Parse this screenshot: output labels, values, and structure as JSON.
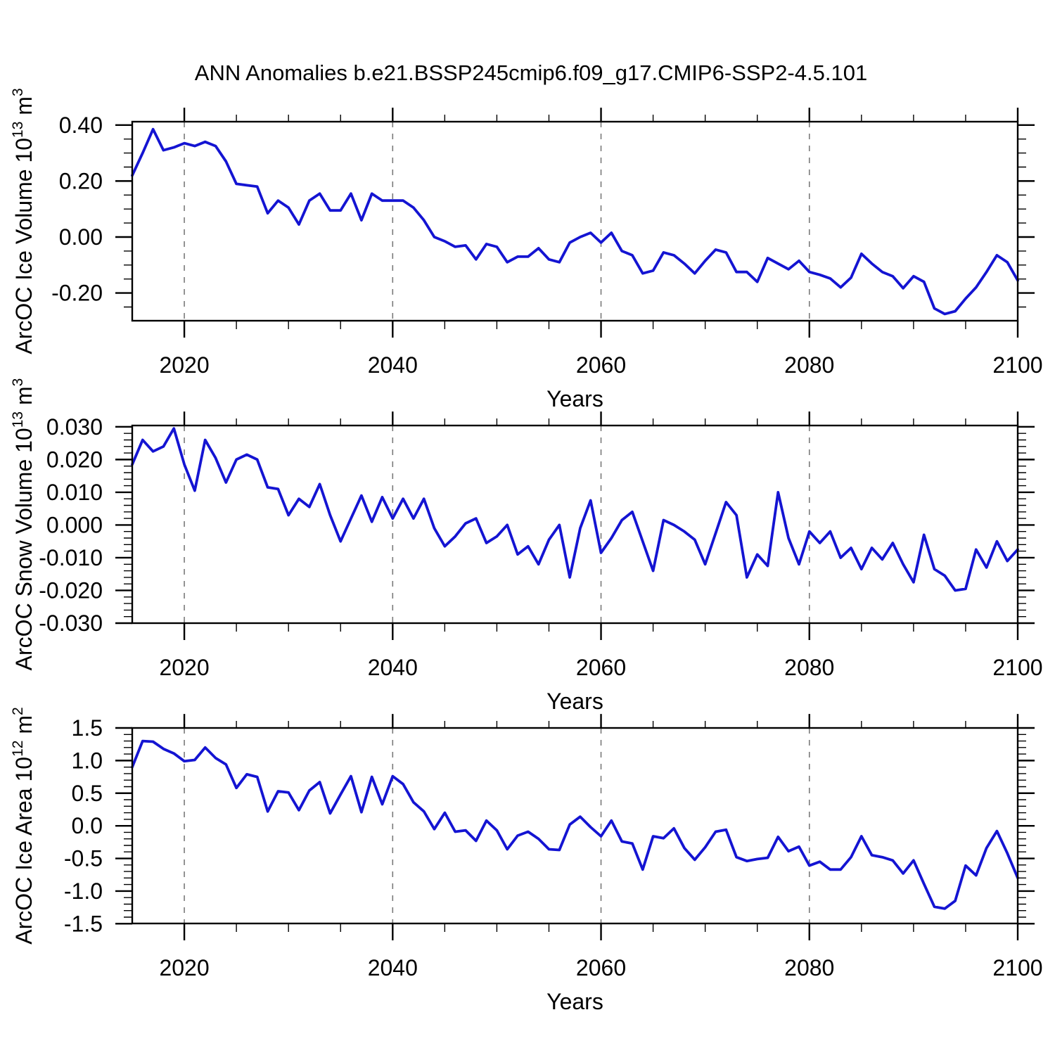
{
  "title": "ANN Anomalies b.e21.BSSP245cmip6.f09_g17.CMIP6-SSP2-4.5.101",
  "chart_data": {
    "type": "line",
    "title": "ANN Anomalies b.e21.BSSP245cmip6.f09_g17.CMIP6-SSP2-4.5.101",
    "x_label": "Years",
    "xlim": [
      2015,
      2100
    ],
    "x_ticks": [
      2020,
      2040,
      2060,
      2080,
      2100
    ],
    "x_tick_labels": [
      "2020",
      "2040",
      "2060",
      "2080",
      "2100"
    ],
    "x_minor_step": 5,
    "x_gridlines": [
      2020,
      2040,
      2060,
      2080
    ],
    "line_color": "#1414d2",
    "grid_color": "#7a7a7a",
    "x_years": [
      2015,
      2016,
      2017,
      2018,
      2019,
      2020,
      2021,
      2022,
      2023,
      2024,
      2025,
      2026,
      2027,
      2028,
      2029,
      2030,
      2031,
      2032,
      2033,
      2034,
      2035,
      2036,
      2037,
      2038,
      2039,
      2040,
      2041,
      2042,
      2043,
      2044,
      2045,
      2046,
      2047,
      2048,
      2049,
      2050,
      2051,
      2052,
      2053,
      2054,
      2055,
      2056,
      2057,
      2058,
      2059,
      2060,
      2061,
      2062,
      2063,
      2064,
      2065,
      2066,
      2067,
      2068,
      2069,
      2070,
      2071,
      2072,
      2073,
      2074,
      2075,
      2076,
      2077,
      2078,
      2079,
      2080,
      2081,
      2082,
      2083,
      2084,
      2085,
      2086,
      2087,
      2088,
      2089,
      2090,
      2091,
      2092,
      2093,
      2094,
      2095,
      2096,
      2097,
      2098,
      2099,
      2100
    ],
    "panels": [
      {
        "name": "ice-volume",
        "ylabel_parts": [
          {
            "t": "ArcOC Ice Volume 10"
          },
          {
            "t": "13",
            "sup": true
          },
          {
            "t": " m"
          },
          {
            "t": "3",
            "sup": true
          }
        ],
        "ylim": [
          -0.299,
          0.412
        ],
        "y_ticks": [
          0.4,
          0.2,
          0.0,
          -0.2
        ],
        "y_tick_labels": [
          "0.40",
          "0.20",
          "0.00",
          "-0.20"
        ],
        "y_minor_step": 0.05,
        "values": [
          0.22,
          0.3,
          0.385,
          0.31,
          0.32,
          0.335,
          0.325,
          0.34,
          0.325,
          0.27,
          0.19,
          0.185,
          0.18,
          0.085,
          0.13,
          0.105,
          0.045,
          0.13,
          0.155,
          0.095,
          0.095,
          0.155,
          0.06,
          0.155,
          0.13,
          0.13,
          0.13,
          0.105,
          0.06,
          0.0,
          -0.015,
          -0.035,
          -0.03,
          -0.08,
          -0.025,
          -0.035,
          -0.09,
          -0.07,
          -0.07,
          -0.04,
          -0.08,
          -0.09,
          -0.02,
          0.0,
          0.015,
          -0.02,
          0.015,
          -0.05,
          -0.065,
          -0.13,
          -0.12,
          -0.055,
          -0.065,
          -0.095,
          -0.13,
          -0.085,
          -0.045,
          -0.055,
          -0.125,
          -0.125,
          -0.16,
          -0.075,
          -0.095,
          -0.115,
          -0.085,
          -0.125,
          -0.135,
          -0.148,
          -0.18,
          -0.145,
          -0.06,
          -0.095,
          -0.125,
          -0.14,
          -0.183,
          -0.14,
          -0.16,
          -0.255,
          -0.275,
          -0.265,
          -0.22,
          -0.18,
          -0.125,
          -0.065,
          -0.09,
          -0.155
        ]
      },
      {
        "name": "snow-volume",
        "ylabel_parts": [
          {
            "t": "ArcOC Snow Volume 10"
          },
          {
            "t": "13",
            "sup": true
          },
          {
            "t": " m"
          },
          {
            "t": "3",
            "sup": true
          }
        ],
        "ylim": [
          -0.03,
          0.0304
        ],
        "y_ticks": [
          0.03,
          0.02,
          0.01,
          0.0,
          -0.01,
          -0.02,
          -0.03
        ],
        "y_tick_labels": [
          "0.030",
          "0.020",
          "0.010",
          "0.000",
          "-0.010",
          "-0.020",
          "-0.030"
        ],
        "y_minor_step": 0.002,
        "values": [
          0.0185,
          0.026,
          0.0225,
          0.024,
          0.0295,
          0.0185,
          0.0105,
          0.026,
          0.0205,
          0.013,
          0.02,
          0.0215,
          0.02,
          0.0115,
          0.011,
          0.003,
          0.008,
          0.0055,
          0.0125,
          0.003,
          -0.005,
          0.002,
          0.009,
          0.001,
          0.0085,
          0.002,
          0.008,
          0.002,
          0.008,
          -0.001,
          -0.0065,
          -0.0035,
          0.0005,
          0.002,
          -0.0055,
          -0.0035,
          0.0,
          -0.009,
          -0.0065,
          -0.012,
          -0.0045,
          0.0,
          -0.016,
          -0.001,
          0.0075,
          -0.0085,
          -0.004,
          0.0015,
          0.004,
          -0.005,
          -0.014,
          0.0015,
          0.0,
          -0.002,
          -0.0045,
          -0.012,
          -0.0025,
          0.007,
          0.003,
          -0.016,
          -0.009,
          -0.0125,
          0.01,
          -0.004,
          -0.012,
          -0.002,
          -0.0055,
          -0.002,
          -0.01,
          -0.007,
          -0.0135,
          -0.007,
          -0.0105,
          -0.0055,
          -0.012,
          -0.0175,
          -0.003,
          -0.0135,
          -0.0155,
          -0.02,
          -0.0195,
          -0.0075,
          -0.013,
          -0.005,
          -0.011,
          -0.0075
        ]
      },
      {
        "name": "ice-area",
        "ylabel_parts": [
          {
            "t": "ArcOC Ice Area 10"
          },
          {
            "t": "12",
            "sup": true
          },
          {
            "t": " m"
          },
          {
            "t": "2",
            "sup": true
          }
        ],
        "ylim": [
          -1.497,
          1.5
        ],
        "y_ticks": [
          1.5,
          1.0,
          0.5,
          0.0,
          -0.5,
          -1.0,
          -1.5
        ],
        "y_tick_labels": [
          "1.5",
          "1.0",
          "0.5",
          "0.0",
          "-0.5",
          "-1.0",
          "-1.5"
        ],
        "y_minor_step": 0.1,
        "values": [
          0.9,
          1.3,
          1.29,
          1.18,
          1.11,
          0.99,
          1.01,
          1.2,
          1.04,
          0.94,
          0.58,
          0.79,
          0.75,
          0.22,
          0.53,
          0.51,
          0.24,
          0.54,
          0.67,
          0.19,
          0.48,
          0.76,
          0.21,
          0.75,
          0.33,
          0.76,
          0.64,
          0.36,
          0.22,
          -0.05,
          0.2,
          -0.09,
          -0.07,
          -0.23,
          0.08,
          -0.07,
          -0.36,
          -0.15,
          -0.09,
          -0.2,
          -0.36,
          -0.37,
          0.02,
          0.14,
          -0.02,
          -0.16,
          0.08,
          -0.24,
          -0.27,
          -0.67,
          -0.16,
          -0.19,
          -0.04,
          -0.34,
          -0.52,
          -0.33,
          -0.09,
          -0.06,
          -0.48,
          -0.54,
          -0.51,
          -0.49,
          -0.17,
          -0.39,
          -0.32,
          -0.61,
          -0.55,
          -0.67,
          -0.67,
          -0.48,
          -0.16,
          -0.45,
          -0.48,
          -0.53,
          -0.73,
          -0.53,
          -0.89,
          -1.24,
          -1.27,
          -1.15,
          -0.61,
          -0.76,
          -0.34,
          -0.08,
          -0.42,
          -0.8
        ]
      }
    ]
  }
}
